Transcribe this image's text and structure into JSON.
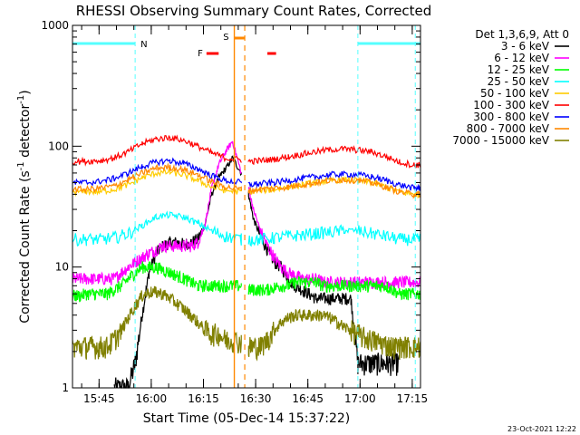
{
  "chart_data": {
    "type": "line",
    "title": "RHESSI Observing Summary Count Rates, Corrected",
    "xlabel": "Start Time (05-Dec-14 15:37:22)",
    "ylabel_main": "Corrected Count Rate (s",
    "ylabel_sup1": "-1",
    "ylabel_mid": " detector",
    "ylabel_sup2": "-1",
    "ylabel_end": ")",
    "y_scale": "log",
    "ylim": [
      1,
      1000
    ],
    "y_ticks": [
      {
        "value": 1,
        "label": "1"
      },
      {
        "value": 10,
        "label": "10"
      },
      {
        "value": 100,
        "label": "100"
      },
      {
        "value": 1000,
        "label": "1000"
      }
    ],
    "xlim_minutes": [
      0,
      100
    ],
    "x_ticks": [
      {
        "minute": 7.63,
        "label": "15:45"
      },
      {
        "minute": 22.63,
        "label": "16:00"
      },
      {
        "minute": 37.63,
        "label": "16:15"
      },
      {
        "minute": 52.63,
        "label": "16:30"
      },
      {
        "minute": 67.63,
        "label": "16:45"
      },
      {
        "minute": 82.63,
        "label": "17:00"
      },
      {
        "minute": 97.63,
        "label": "17:15"
      }
    ],
    "legend_title": "Det 1,3,6,9, Att 0",
    "legend_placement": "right",
    "data_gap_minutes": [
      48.5,
      50.6
    ],
    "series": [
      {
        "name": "3 - 6 keV",
        "color": "#000000",
        "x": [
          0,
          12,
          14,
          16,
          18,
          20,
          22,
          24,
          26,
          28,
          30,
          32,
          34,
          36,
          38,
          40,
          42,
          44,
          46,
          48.5,
          50.6,
          52,
          54,
          56,
          58,
          60,
          62,
          64,
          66,
          68,
          70,
          72,
          74,
          76,
          78,
          80,
          82,
          84,
          86,
          88,
          90,
          92,
          94,
          96,
          98,
          100
        ],
        "y": [
          null,
          1,
          1,
          1,
          1.6,
          4,
          9,
          13,
          15,
          16,
          16,
          15.5,
          16,
          17,
          22,
          40,
          55,
          65,
          80,
          60,
          40,
          25,
          18,
          14,
          11,
          10,
          8,
          7,
          6.5,
          6,
          5.5,
          5.5,
          5.5,
          5.5,
          5.5,
          5.5,
          1.6,
          1.6,
          1.6,
          1.6,
          1.6,
          1.6,
          1.6,
          null,
          null,
          null
        ]
      },
      {
        "name": "6 - 12 keV",
        "color": "#ff00ff",
        "x": [
          0,
          2,
          4,
          6,
          8,
          10,
          12,
          14,
          16,
          18,
          20,
          22,
          24,
          26,
          28,
          30,
          32,
          34,
          36,
          38,
          40,
          42,
          44,
          46,
          48.5,
          50.6,
          52,
          54,
          56,
          58,
          60,
          62,
          64,
          66,
          68,
          70,
          72,
          74,
          76,
          78,
          80,
          82,
          84,
          86,
          88,
          90,
          92,
          94,
          96,
          98,
          100
        ],
        "y": [
          8,
          8,
          8,
          8,
          8,
          8,
          8,
          9,
          10,
          11,
          12,
          13,
          14,
          15,
          15,
          15,
          15,
          15,
          16,
          22,
          45,
          70,
          90,
          110,
          60,
          45,
          30,
          20,
          15,
          12,
          10,
          9,
          8.5,
          8,
          8,
          8,
          7.5,
          7.5,
          7.5,
          7.5,
          7.5,
          7.5,
          7.5,
          7.5,
          7.5,
          7.5,
          7.5,
          7.5,
          7.5,
          7.5,
          7.5
        ]
      },
      {
        "name": "12 - 25 keV",
        "color": "#00ff00",
        "x": [
          0,
          2,
          4,
          6,
          8,
          10,
          12,
          14,
          16,
          18,
          20,
          22,
          24,
          26,
          28,
          30,
          32,
          34,
          36,
          38,
          40,
          42,
          44,
          46,
          48.5,
          50.6,
          52,
          54,
          56,
          58,
          60,
          62,
          64,
          66,
          68,
          70,
          72,
          74,
          76,
          78,
          80,
          82,
          84,
          86,
          88,
          90,
          92,
          94,
          96,
          98,
          100
        ],
        "y": [
          5.8,
          5.8,
          6,
          6,
          6,
          6,
          6.5,
          7,
          8,
          9,
          10,
          10,
          10,
          9.5,
          9,
          8.5,
          8,
          7.5,
          7,
          7,
          7,
          7,
          7,
          7,
          7,
          6.5,
          6.5,
          6.5,
          6.5,
          6.8,
          7,
          7,
          7.5,
          7.5,
          7.5,
          7.5,
          7,
          7,
          7,
          7,
          7,
          7,
          7,
          7,
          7,
          7,
          6.5,
          6,
          6,
          6,
          6
        ]
      },
      {
        "name": "25 - 50 keV",
        "color": "#00ffff",
        "x": [
          0,
          4,
          8,
          12,
          16,
          20,
          24,
          28,
          32,
          36,
          40,
          44,
          48.5,
          50.6,
          54,
          58,
          62,
          66,
          70,
          74,
          78,
          82,
          86,
          90,
          94,
          98,
          100
        ],
        "y": [
          17,
          17,
          17,
          17.5,
          19,
          22,
          26,
          27,
          26,
          23,
          20,
          18,
          17,
          17,
          17,
          17.5,
          18,
          18.5,
          19,
          19.5,
          20,
          20,
          19,
          18,
          17,
          17,
          17
        ]
      },
      {
        "name": "50 - 100 keV",
        "color": "#ffcc00",
        "x": [
          0,
          4,
          8,
          12,
          16,
          20,
          24,
          28,
          32,
          36,
          40,
          44,
          48.5,
          50.6,
          54,
          58,
          62,
          66,
          70,
          74,
          78,
          82,
          86,
          90,
          94,
          98,
          100
        ],
        "y": [
          42,
          42,
          42,
          44,
          48,
          55,
          60,
          61,
          58,
          52,
          46,
          43,
          42,
          42,
          43,
          44,
          46,
          48,
          50,
          52,
          53,
          52,
          50,
          46,
          42,
          40,
          40
        ]
      },
      {
        "name": "100 - 300 keV",
        "color": "#ff0000",
        "x": [
          0,
          4,
          8,
          12,
          16,
          20,
          24,
          28,
          32,
          36,
          40,
          44,
          48.5,
          50.6,
          54,
          58,
          62,
          66,
          70,
          74,
          78,
          82,
          86,
          90,
          94,
          98,
          100
        ],
        "y": [
          75,
          75,
          76,
          80,
          90,
          105,
          115,
          118,
          112,
          100,
          88,
          80,
          77,
          75,
          76,
          78,
          82,
          86,
          90,
          94,
          95,
          93,
          90,
          82,
          74,
          70,
          70
        ]
      },
      {
        "name": "300 - 800 keV",
        "color": "#0000ff",
        "x": [
          0,
          4,
          8,
          12,
          16,
          20,
          24,
          28,
          32,
          36,
          40,
          44,
          48.5,
          50.6,
          54,
          58,
          62,
          66,
          70,
          74,
          78,
          82,
          86,
          90,
          94,
          98,
          100
        ],
        "y": [
          50,
          50,
          51,
          54,
          60,
          68,
          74,
          76,
          72,
          65,
          57,
          52,
          50,
          48,
          49,
          50,
          52,
          54,
          56,
          58,
          59,
          58,
          56,
          52,
          48,
          45,
          45
        ]
      },
      {
        "name": "800 - 7000 keV",
        "color": "#ff8800",
        "x": [
          0,
          4,
          8,
          12,
          16,
          20,
          24,
          28,
          32,
          36,
          40,
          44,
          48.5,
          50.6,
          54,
          58,
          62,
          66,
          70,
          74,
          78,
          82,
          86,
          90,
          94,
          98,
          100
        ],
        "y": [
          44,
          44,
          45,
          47,
          53,
          60,
          66,
          67,
          64,
          58,
          51,
          46,
          44,
          43,
          44,
          45,
          46,
          48,
          50,
          52,
          53,
          52,
          50,
          46,
          42,
          40,
          40
        ]
      },
      {
        "name": "7000 - 15000 keV",
        "color": "#808000",
        "x": [
          0,
          2,
          4,
          6,
          8,
          10,
          12,
          14,
          16,
          18,
          20,
          22,
          24,
          26,
          28,
          30,
          32,
          34,
          36,
          38,
          40,
          42,
          44,
          46,
          48.5,
          50.6,
          52,
          54,
          56,
          58,
          60,
          62,
          64,
          66,
          68,
          70,
          72,
          74,
          76,
          78,
          80,
          82,
          84,
          86,
          88,
          90,
          92,
          94,
          96,
          98,
          100
        ],
        "y": [
          2.2,
          2.2,
          2.2,
          2.2,
          2.2,
          2.2,
          2.5,
          3,
          3.8,
          4.8,
          5.8,
          6.2,
          6.2,
          6,
          5.5,
          5,
          4.5,
          4,
          3.5,
          3,
          2.8,
          2.8,
          2.5,
          2.5,
          2.4,
          2.2,
          2.2,
          2.2,
          2.5,
          3,
          3.5,
          3.8,
          4,
          4,
          4,
          4,
          4,
          3.8,
          3.5,
          3.2,
          3,
          2.8,
          2.6,
          2.5,
          2.4,
          2.3,
          2.2,
          2.2,
          2.2,
          2.2,
          2.2
        ]
      }
    ],
    "annotations": {
      "night_label": "N",
      "night_color": "#55ffff",
      "night_bars": [
        [
          0,
          18
        ],
        [
          82,
          100
        ]
      ],
      "night_lines": [
        18,
        82,
        98.5
      ],
      "flare_label": "F",
      "flare_color": "#ff0000",
      "flare_bars": [
        [
          38.5,
          42
        ],
        [
          56,
          58.5
        ]
      ],
      "saa_label": "S",
      "saa_color": "#ff8800",
      "saa_solid": [
        46.5
      ],
      "saa_dashed": [
        49.5
      ],
      "saa_bar": [
        46.5,
        49.5
      ]
    }
  },
  "footer_date": "23-Oct-2021 12:22"
}
